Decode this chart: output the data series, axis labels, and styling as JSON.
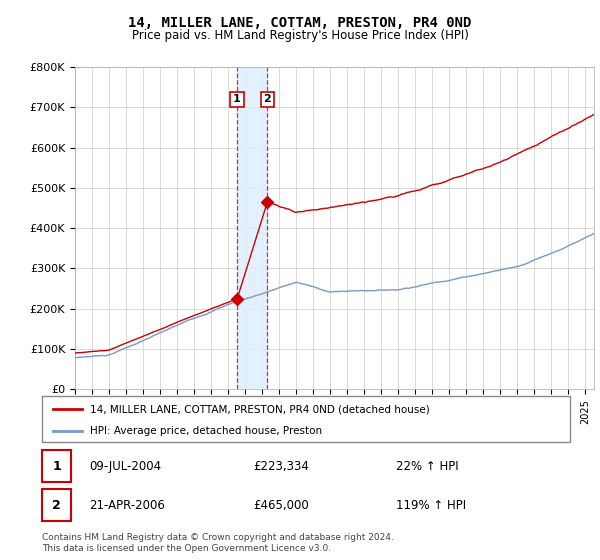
{
  "title": "14, MILLER LANE, COTTAM, PRESTON, PR4 0ND",
  "subtitle": "Price paid vs. HM Land Registry's House Price Index (HPI)",
  "legend_label_red": "14, MILLER LANE, COTTAM, PRESTON, PR4 0ND (detached house)",
  "legend_label_blue": "HPI: Average price, detached house, Preston",
  "transaction1_date": "09-JUL-2004",
  "transaction1_price": "£223,334",
  "transaction1_hpi": "22% ↑ HPI",
  "transaction2_date": "21-APR-2006",
  "transaction2_price": "£465,000",
  "transaction2_hpi": "119% ↑ HPI",
  "footer": "Contains HM Land Registry data © Crown copyright and database right 2024.\nThis data is licensed under the Open Government Licence v3.0.",
  "red_color": "#cc0000",
  "blue_color": "#7799cc",
  "shade_color": "#ddeeff",
  "vline_color": "#cc0000",
  "ylim": [
    0,
    800000
  ],
  "yticks": [
    0,
    100000,
    200000,
    300000,
    400000,
    500000,
    600000,
    700000,
    800000
  ],
  "ytick_labels": [
    "£0",
    "£100K",
    "£200K",
    "£300K",
    "£400K",
    "£500K",
    "£600K",
    "£700K",
    "£800K"
  ],
  "transaction1_x": 2004.52,
  "transaction1_y": 223334,
  "transaction2_x": 2006.31,
  "transaction2_y": 465000,
  "shade_x1": 2004.52,
  "shade_x2": 2006.31,
  "xmin": 1995.0,
  "xmax": 2025.5
}
